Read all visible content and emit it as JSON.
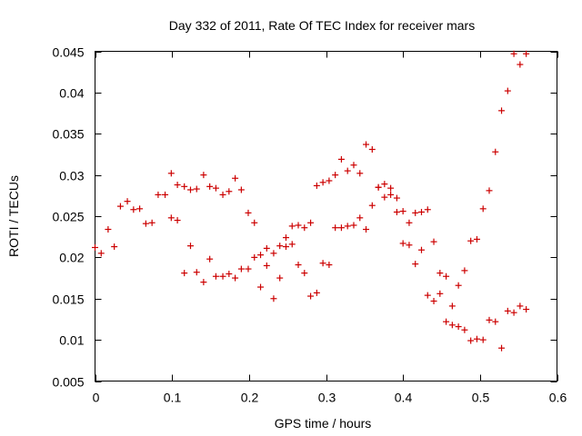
{
  "chart_data": {
    "type": "scatter",
    "title": "Day 332 of 2011, Rate Of TEC Index for receiver mars",
    "xlabel": "GPS time / hours",
    "ylabel": "ROTI / TECUs",
    "xlim": [
      0,
      0.6
    ],
    "ylim": [
      0.005,
      0.045
    ],
    "xticks": [
      0,
      0.1,
      0.2,
      0.3,
      0.4,
      0.5,
      0.6
    ],
    "xtick_labels": [
      "0",
      "0.1",
      "0.2",
      "0.3",
      "0.4",
      "0.5",
      "0.6"
    ],
    "yticks": [
      0.005,
      0.01,
      0.015,
      0.02,
      0.025,
      0.03,
      0.035,
      0.04,
      0.045
    ],
    "ytick_labels": [
      "0.005",
      "0.01",
      "0.015",
      "0.02",
      "0.025",
      "0.03",
      "0.035",
      "0.04",
      "0.045"
    ],
    "grid": false,
    "marker": "+",
    "color": "#cc0000",
    "series": [
      {
        "name": "ROTI",
        "points": [
          [
            0.0,
            0.0212
          ],
          [
            0.008,
            0.0205
          ],
          [
            0.017,
            0.0234
          ],
          [
            0.025,
            0.0213
          ],
          [
            0.033,
            0.0262
          ],
          [
            0.042,
            0.0268
          ],
          [
            0.05,
            0.0258
          ],
          [
            0.058,
            0.0259
          ],
          [
            0.066,
            0.0241
          ],
          [
            0.074,
            0.0242
          ],
          [
            0.082,
            0.0276
          ],
          [
            0.091,
            0.0276
          ],
          [
            0.099,
            0.0302
          ],
          [
            0.107,
            0.0288
          ],
          [
            0.116,
            0.0286
          ],
          [
            0.124,
            0.0282
          ],
          [
            0.132,
            0.0283
          ],
          [
            0.141,
            0.03
          ],
          [
            0.149,
            0.0286
          ],
          [
            0.157,
            0.0284
          ],
          [
            0.166,
            0.0276
          ],
          [
            0.174,
            0.028
          ],
          [
            0.182,
            0.0296
          ],
          [
            0.19,
            0.0282
          ],
          [
            0.199,
            0.0254
          ],
          [
            0.207,
            0.0242
          ],
          [
            0.099,
            0.0248
          ],
          [
            0.107,
            0.0245
          ],
          [
            0.116,
            0.0181
          ],
          [
            0.124,
            0.0214
          ],
          [
            0.132,
            0.0182
          ],
          [
            0.141,
            0.017
          ],
          [
            0.149,
            0.0198
          ],
          [
            0.157,
            0.0177
          ],
          [
            0.166,
            0.0177
          ],
          [
            0.174,
            0.018
          ],
          [
            0.182,
            0.0175
          ],
          [
            0.19,
            0.0186
          ],
          [
            0.199,
            0.0186
          ],
          [
            0.207,
            0.02
          ],
          [
            0.215,
            0.0203
          ],
          [
            0.215,
            0.0164
          ],
          [
            0.223,
            0.019
          ],
          [
            0.223,
            0.0211
          ],
          [
            0.232,
            0.015
          ],
          [
            0.232,
            0.0205
          ],
          [
            0.24,
            0.0214
          ],
          [
            0.24,
            0.0175
          ],
          [
            0.248,
            0.0224
          ],
          [
            0.248,
            0.0213
          ],
          [
            0.256,
            0.0216
          ],
          [
            0.256,
            0.0238
          ],
          [
            0.264,
            0.0191
          ],
          [
            0.264,
            0.0239
          ],
          [
            0.272,
            0.0181
          ],
          [
            0.272,
            0.0236
          ],
          [
            0.28,
            0.0242
          ],
          [
            0.28,
            0.0153
          ],
          [
            0.288,
            0.0157
          ],
          [
            0.288,
            0.0287
          ],
          [
            0.296,
            0.0193
          ],
          [
            0.296,
            0.0291
          ],
          [
            0.304,
            0.0191
          ],
          [
            0.304,
            0.0293
          ],
          [
            0.312,
            0.0236
          ],
          [
            0.312,
            0.03
          ],
          [
            0.32,
            0.0236
          ],
          [
            0.32,
            0.0319
          ],
          [
            0.328,
            0.0238
          ],
          [
            0.328,
            0.0305
          ],
          [
            0.336,
            0.0239
          ],
          [
            0.336,
            0.0312
          ],
          [
            0.344,
            0.0248
          ],
          [
            0.344,
            0.0302
          ],
          [
            0.352,
            0.0234
          ],
          [
            0.352,
            0.0337
          ],
          [
            0.36,
            0.0263
          ],
          [
            0.36,
            0.0331
          ],
          [
            0.368,
            0.0285
          ],
          [
            0.368,
            0.0285
          ],
          [
            0.376,
            0.0273
          ],
          [
            0.376,
            0.0289
          ],
          [
            0.384,
            0.0276
          ],
          [
            0.384,
            0.0284
          ],
          [
            0.392,
            0.0272
          ],
          [
            0.392,
            0.0255
          ],
          [
            0.4,
            0.0256
          ],
          [
            0.4,
            0.0217
          ],
          [
            0.408,
            0.0215
          ],
          [
            0.408,
            0.0242
          ],
          [
            0.416,
            0.0192
          ],
          [
            0.416,
            0.0254
          ],
          [
            0.424,
            0.0209
          ],
          [
            0.424,
            0.0255
          ],
          [
            0.432,
            0.0258
          ],
          [
            0.432,
            0.0154
          ],
          [
            0.44,
            0.0147
          ],
          [
            0.44,
            0.0219
          ],
          [
            0.448,
            0.0156
          ],
          [
            0.448,
            0.0181
          ],
          [
            0.456,
            0.0177
          ],
          [
            0.456,
            0.0122
          ],
          [
            0.464,
            0.0141
          ],
          [
            0.464,
            0.0118
          ],
          [
            0.472,
            0.0166
          ],
          [
            0.472,
            0.0116
          ],
          [
            0.48,
            0.0184
          ],
          [
            0.48,
            0.0112
          ],
          [
            0.488,
            0.0099
          ],
          [
            0.488,
            0.022
          ],
          [
            0.496,
            0.0101
          ],
          [
            0.496,
            0.0222
          ],
          [
            0.504,
            0.01
          ],
          [
            0.504,
            0.0259
          ],
          [
            0.512,
            0.0281
          ],
          [
            0.512,
            0.0124
          ],
          [
            0.52,
            0.0328
          ],
          [
            0.52,
            0.0122
          ],
          [
            0.528,
            0.0378
          ],
          [
            0.528,
            0.009
          ],
          [
            0.536,
            0.0402
          ],
          [
            0.536,
            0.0135
          ],
          [
            0.544,
            0.0447
          ],
          [
            0.544,
            0.0133
          ],
          [
            0.552,
            0.0434
          ],
          [
            0.552,
            0.0141
          ],
          [
            0.56,
            0.0447
          ],
          [
            0.56,
            0.0137
          ]
        ]
      }
    ]
  }
}
